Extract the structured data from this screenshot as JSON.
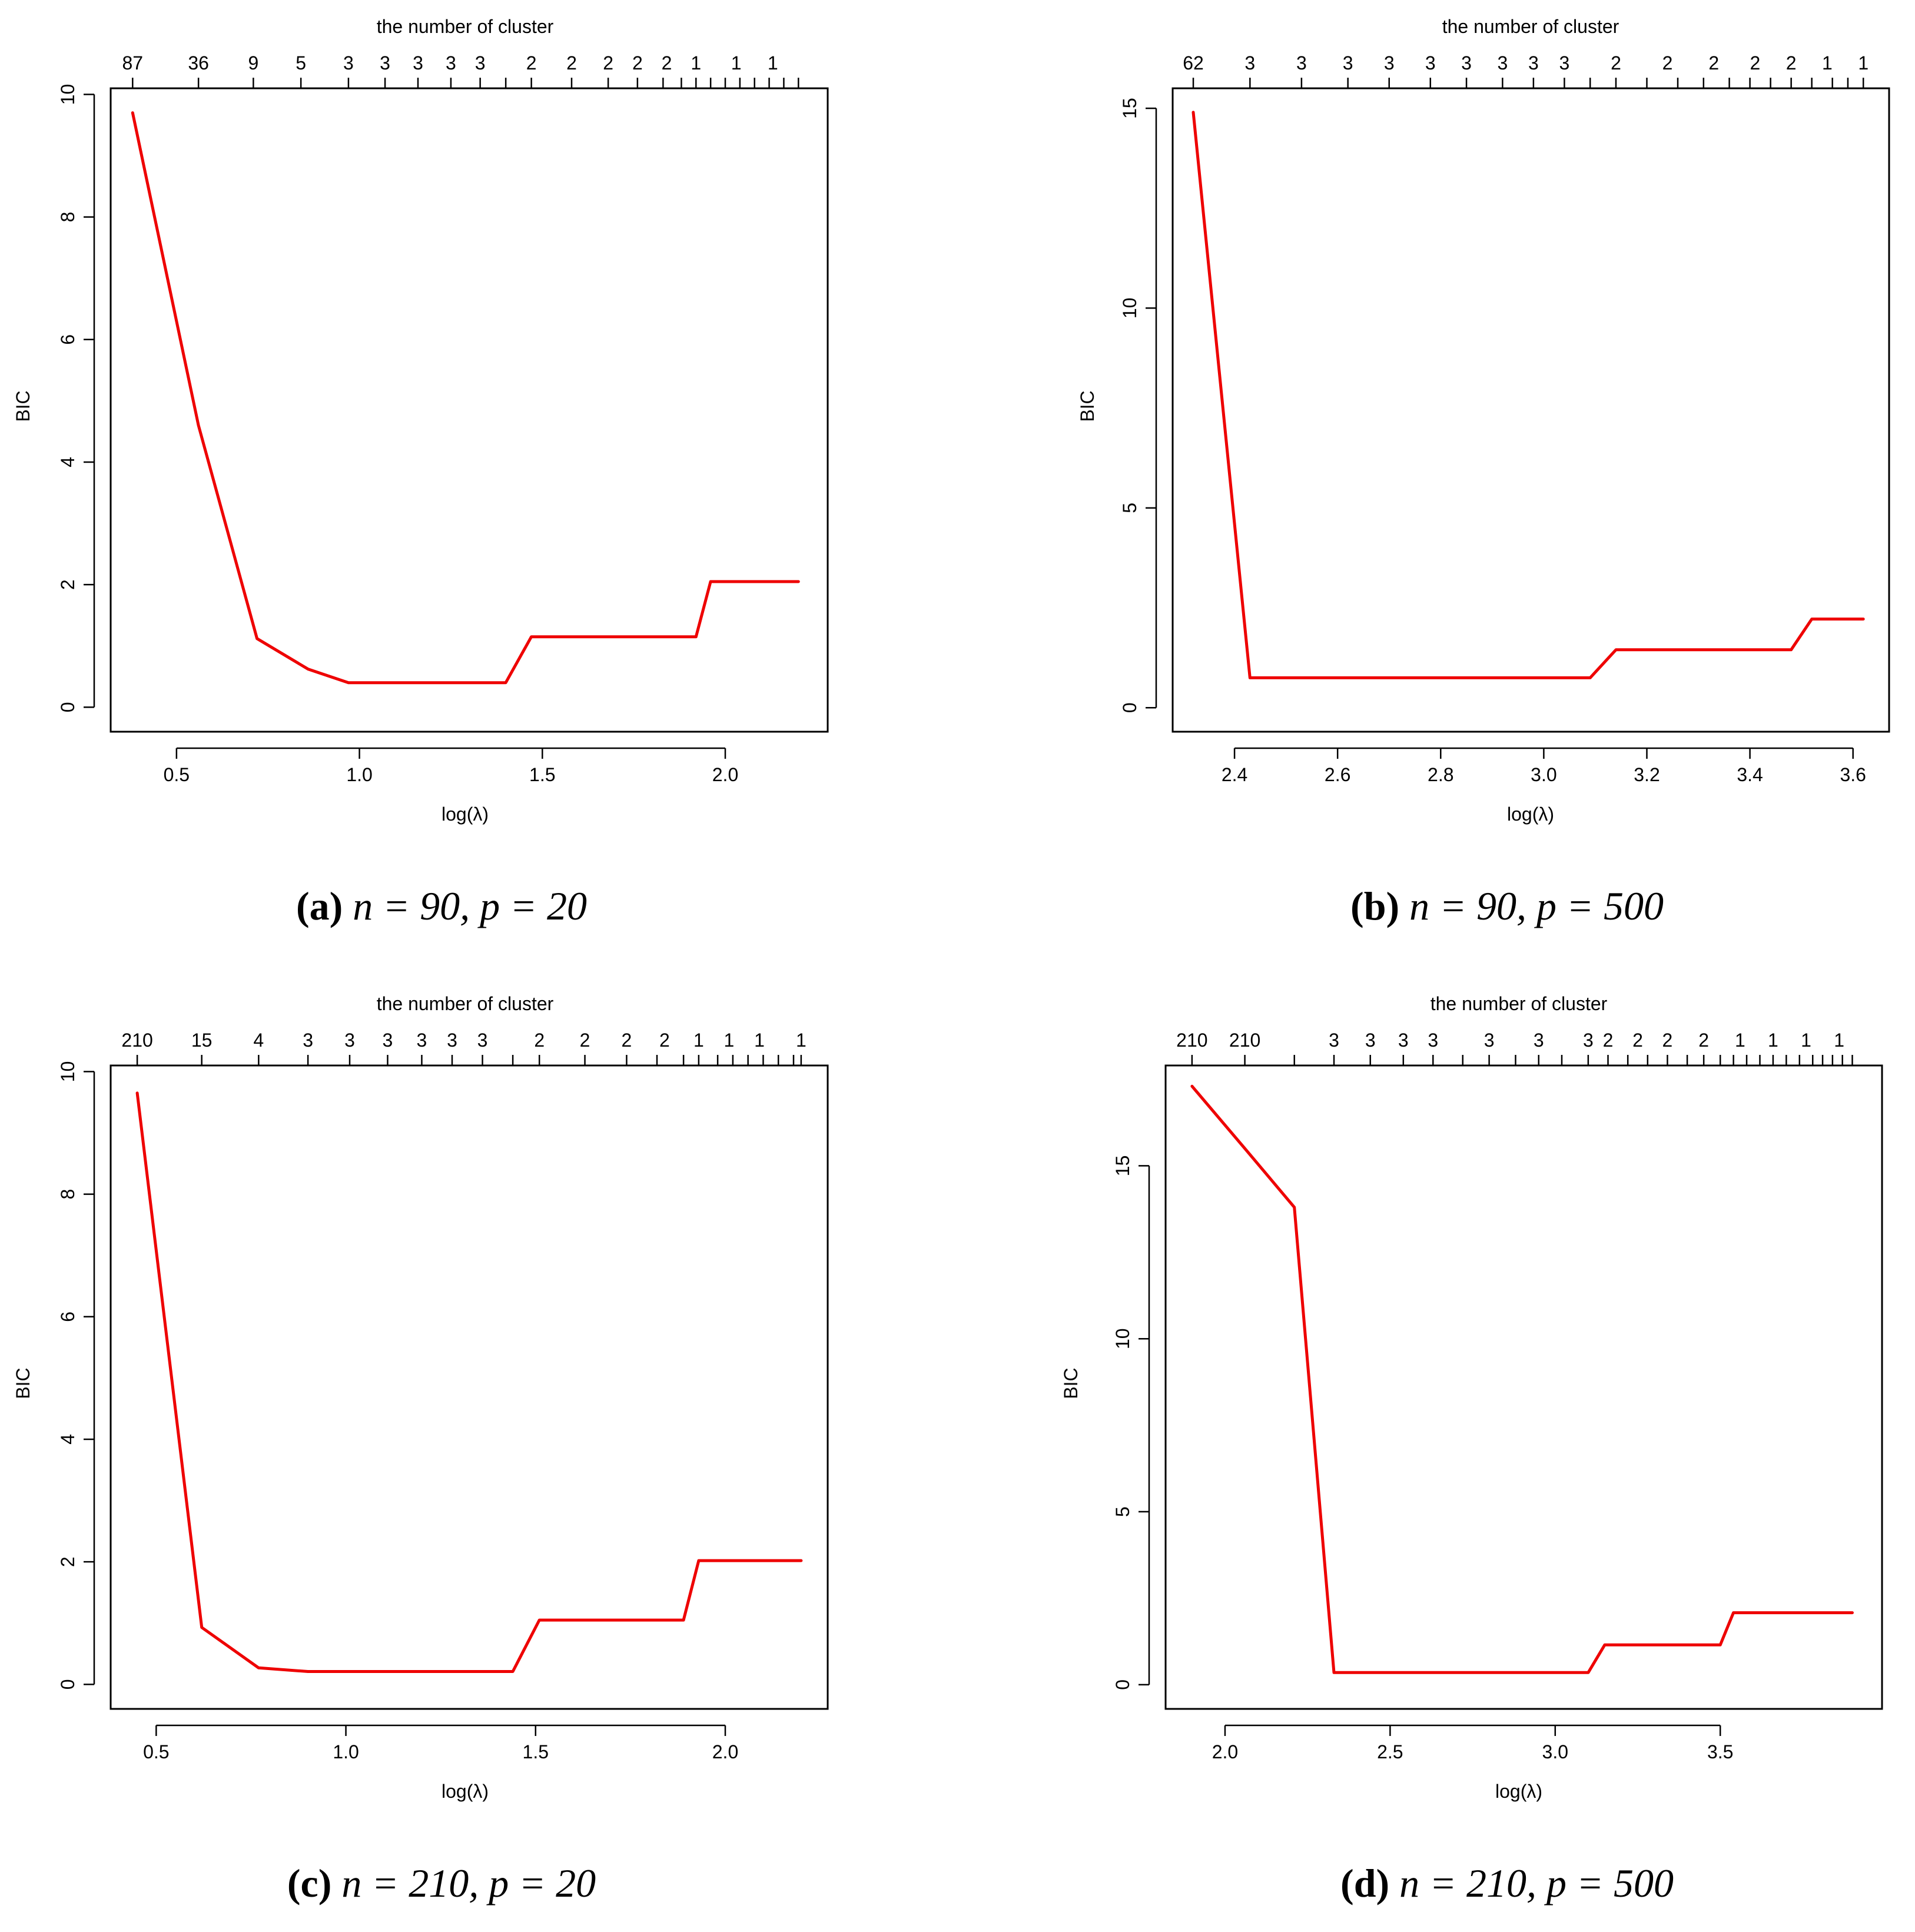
{
  "colors": {
    "line": "#ee0000",
    "axis": "#000000",
    "background": "#ffffff"
  },
  "chart_data": [
    {
      "type": "line",
      "id": "a",
      "caption_tag": "(a)",
      "caption_text": "n = 90, p = 20",
      "xlabel": "log(λ)",
      "ylabel": "BIC",
      "toplabel": "the number of cluster",
      "xlim": [
        0.32,
        2.28
      ],
      "ylim": [
        -0.4,
        10.1
      ],
      "xticks": [
        0.5,
        1.0,
        1.5,
        2.0
      ],
      "xtick_labels": [
        "0.5",
        "1.0",
        "1.5",
        "2.0"
      ],
      "yticks": [
        0,
        2,
        4,
        6,
        8,
        10
      ],
      "ytick_labels": [
        "0",
        "2",
        "4",
        "6",
        "8",
        "10"
      ],
      "top_ticks": [
        0.38,
        0.56,
        0.71,
        0.84,
        0.97,
        1.07,
        1.16,
        1.25,
        1.33,
        1.4,
        1.47,
        1.58,
        1.68,
        1.76,
        1.83,
        1.88,
        1.92,
        1.96,
        2.0,
        2.04,
        2.08,
        2.12,
        2.16,
        2.2
      ],
      "top_labels": [
        {
          "x": 0.38,
          "text": "87"
        },
        {
          "x": 0.56,
          "text": "36"
        },
        {
          "x": 0.71,
          "text": "9"
        },
        {
          "x": 0.84,
          "text": "5"
        },
        {
          "x": 0.97,
          "text": "3"
        },
        {
          "x": 1.07,
          "text": "3"
        },
        {
          "x": 1.16,
          "text": "3"
        },
        {
          "x": 1.25,
          "text": "3"
        },
        {
          "x": 1.33,
          "text": "3"
        },
        {
          "x": 1.47,
          "text": "2"
        },
        {
          "x": 1.58,
          "text": "2"
        },
        {
          "x": 1.68,
          "text": "2"
        },
        {
          "x": 1.76,
          "text": "2"
        },
        {
          "x": 1.84,
          "text": "2"
        },
        {
          "x": 1.92,
          "text": "1"
        },
        {
          "x": 2.03,
          "text": "1"
        },
        {
          "x": 2.13,
          "text": "1"
        }
      ],
      "series": [
        {
          "name": "BIC",
          "x": [
            0.38,
            0.56,
            0.72,
            0.86,
            0.97,
            1.4,
            1.47,
            1.92,
            1.96,
            2.2
          ],
          "y": [
            9.7,
            4.6,
            1.12,
            0.62,
            0.4,
            0.4,
            1.15,
            1.15,
            2.05,
            2.05
          ]
        }
      ]
    },
    {
      "type": "line",
      "id": "b",
      "caption_tag": "(b)",
      "caption_text": "n = 90, p = 500",
      "xlabel": "log(λ)",
      "ylabel": "BIC",
      "toplabel": "the number of cluster",
      "xlim": [
        2.28,
        3.67
      ],
      "ylim": [
        -0.6,
        15.5
      ],
      "xticks": [
        2.4,
        2.6,
        2.8,
        3.0,
        3.2,
        3.4,
        3.6
      ],
      "xtick_labels": [
        "2.4",
        "2.6",
        "2.8",
        "3.0",
        "3.2",
        "3.4",
        "3.6"
      ],
      "yticks": [
        0,
        5,
        10,
        15
      ],
      "ytick_labels": [
        "0",
        "5",
        "10",
        "15"
      ],
      "top_ticks": [
        2.32,
        2.43,
        2.53,
        2.62,
        2.7,
        2.78,
        2.85,
        2.92,
        2.98,
        3.04,
        3.09,
        3.14,
        3.2,
        3.26,
        3.31,
        3.36,
        3.4,
        3.44,
        3.48,
        3.52,
        3.56,
        3.59,
        3.62
      ],
      "top_labels": [
        {
          "x": 2.32,
          "text": "62"
        },
        {
          "x": 2.43,
          "text": "3"
        },
        {
          "x": 2.53,
          "text": "3"
        },
        {
          "x": 2.62,
          "text": "3"
        },
        {
          "x": 2.7,
          "text": "3"
        },
        {
          "x": 2.78,
          "text": "3"
        },
        {
          "x": 2.85,
          "text": "3"
        },
        {
          "x": 2.92,
          "text": "3"
        },
        {
          "x": 2.98,
          "text": "3"
        },
        {
          "x": 3.04,
          "text": "3"
        },
        {
          "x": 3.14,
          "text": "2"
        },
        {
          "x": 3.24,
          "text": "2"
        },
        {
          "x": 3.33,
          "text": "2"
        },
        {
          "x": 3.41,
          "text": "2"
        },
        {
          "x": 3.48,
          "text": "2"
        },
        {
          "x": 3.55,
          "text": "1"
        },
        {
          "x": 3.62,
          "text": "1"
        }
      ],
      "series": [
        {
          "name": "BIC",
          "x": [
            2.32,
            2.43,
            3.09,
            3.14,
            3.48,
            3.52,
            3.62
          ],
          "y": [
            14.9,
            0.75,
            0.75,
            1.45,
            1.45,
            2.22,
            2.22
          ]
        }
      ]
    },
    {
      "type": "line",
      "id": "c",
      "caption_tag": "(c)",
      "caption_text": "n = 210, p = 20",
      "xlabel": "log(λ)",
      "ylabel": "BIC",
      "toplabel": "the number of cluster",
      "xlim": [
        0.38,
        2.27
      ],
      "ylim": [
        -0.4,
        10.1
      ],
      "xticks": [
        0.5,
        1.0,
        1.5,
        2.0
      ],
      "xtick_labels": [
        "0.5",
        "1.0",
        "1.5",
        "2.0"
      ],
      "yticks": [
        0,
        2,
        4,
        6,
        8,
        10
      ],
      "ytick_labels": [
        "0",
        "2",
        "4",
        "6",
        "8",
        "10"
      ],
      "top_ticks": [
        0.45,
        0.62,
        0.77,
        0.9,
        1.01,
        1.11,
        1.2,
        1.28,
        1.36,
        1.44,
        1.51,
        1.63,
        1.74,
        1.82,
        1.89,
        1.93,
        1.98,
        2.02,
        2.06,
        2.1,
        2.14,
        2.18,
        2.2
      ],
      "top_labels": [
        {
          "x": 0.45,
          "text": "210"
        },
        {
          "x": 0.62,
          "text": "15"
        },
        {
          "x": 0.77,
          "text": "4"
        },
        {
          "x": 0.9,
          "text": "3"
        },
        {
          "x": 1.01,
          "text": "3"
        },
        {
          "x": 1.11,
          "text": "3"
        },
        {
          "x": 1.2,
          "text": "3"
        },
        {
          "x": 1.28,
          "text": "3"
        },
        {
          "x": 1.36,
          "text": "3"
        },
        {
          "x": 1.51,
          "text": "2"
        },
        {
          "x": 1.63,
          "text": "2"
        },
        {
          "x": 1.74,
          "text": "2"
        },
        {
          "x": 1.84,
          "text": "2"
        },
        {
          "x": 1.93,
          "text": "1"
        },
        {
          "x": 2.01,
          "text": "1"
        },
        {
          "x": 2.09,
          "text": "1"
        },
        {
          "x": 2.2,
          "text": "1"
        }
      ],
      "series": [
        {
          "name": "BIC",
          "x": [
            0.45,
            0.62,
            0.77,
            0.9,
            1.44,
            1.51,
            1.89,
            1.93,
            2.2
          ],
          "y": [
            9.65,
            0.93,
            0.27,
            0.21,
            0.21,
            1.05,
            1.05,
            2.02,
            2.02
          ]
        }
      ]
    },
    {
      "type": "line",
      "id": "d",
      "caption_tag": "(d)",
      "caption_text": "n = 210, p = 500",
      "xlabel": "log(λ)",
      "ylabel": "BIC",
      "toplabel": "the number of cluster",
      "xlim": [
        1.82,
        3.99
      ],
      "ylim": [
        -0.7,
        17.9
      ],
      "xticks": [
        2.0,
        2.5,
        3.0,
        3.5
      ],
      "xtick_labels": [
        "2.0",
        "2.5",
        "3.0",
        "3.5"
      ],
      "yticks": [
        0,
        5,
        10,
        15
      ],
      "ytick_labels": [
        "0",
        "5",
        "10",
        "15"
      ],
      "top_ticks": [
        1.9,
        2.06,
        2.21,
        2.33,
        2.44,
        2.54,
        2.63,
        2.72,
        2.8,
        2.88,
        2.95,
        3.02,
        3.1,
        3.16,
        3.22,
        3.28,
        3.34,
        3.4,
        3.45,
        3.5,
        3.54,
        3.58,
        3.62,
        3.66,
        3.7,
        3.74,
        3.78,
        3.81,
        3.84,
        3.87,
        3.9
      ],
      "top_labels": [
        {
          "x": 1.9,
          "text": "210"
        },
        {
          "x": 2.06,
          "text": "210"
        },
        {
          "x": 2.33,
          "text": "3"
        },
        {
          "x": 2.44,
          "text": "3"
        },
        {
          "x": 2.54,
          "text": "3"
        },
        {
          "x": 2.63,
          "text": "3"
        },
        {
          "x": 2.8,
          "text": "3"
        },
        {
          "x": 2.95,
          "text": "3"
        },
        {
          "x": 3.1,
          "text": "3"
        },
        {
          "x": 3.16,
          "text": "2"
        },
        {
          "x": 3.25,
          "text": "2"
        },
        {
          "x": 3.34,
          "text": "2"
        },
        {
          "x": 3.45,
          "text": "2"
        },
        {
          "x": 3.56,
          "text": "1"
        },
        {
          "x": 3.66,
          "text": "1"
        },
        {
          "x": 3.76,
          "text": "1"
        },
        {
          "x": 3.86,
          "text": "1"
        }
      ],
      "series": [
        {
          "name": "BIC",
          "x": [
            1.9,
            2.06,
            2.21,
            2.33,
            3.1,
            3.15,
            3.5,
            3.54,
            3.9
          ],
          "y": [
            17.3,
            15.5,
            13.8,
            0.35,
            0.35,
            1.15,
            1.15,
            2.08,
            2.08
          ]
        }
      ]
    }
  ]
}
